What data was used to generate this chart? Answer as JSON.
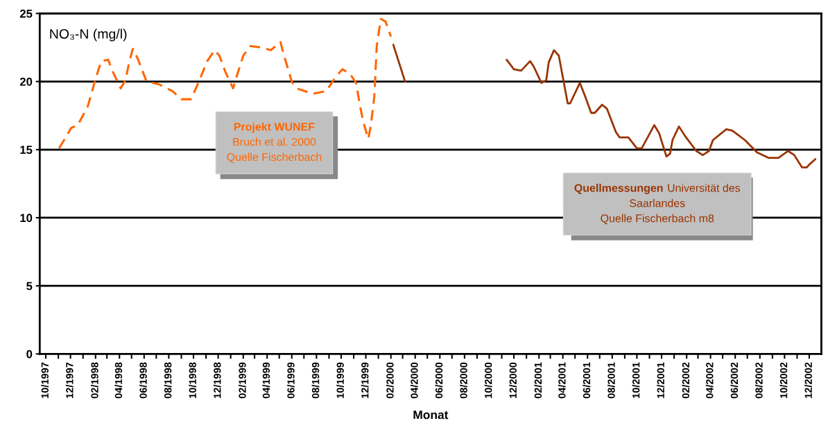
{
  "chart_data": {
    "type": "line",
    "xlabel": "Monat",
    "ylabel": "NO₃-N (mg/l)",
    "ylim": [
      0,
      25
    ],
    "yticks": [
      0,
      5,
      10,
      15,
      20,
      25
    ],
    "grid": "y",
    "legend": false,
    "xlim": [
      "1997-09-16",
      "2002-12-31"
    ],
    "xticks": [
      {
        "value": "1997-10-01",
        "label": "10/1997"
      },
      {
        "value": "1997-11-01",
        "label": null
      },
      {
        "value": "1997-12-01",
        "label": "12/1997"
      },
      {
        "value": "1998-01-01",
        "label": null
      },
      {
        "value": "1998-02-01",
        "label": "02/1998"
      },
      {
        "value": "1998-03-01",
        "label": null
      },
      {
        "value": "1998-04-01",
        "label": "04/1998"
      },
      {
        "value": "1998-05-01",
        "label": null
      },
      {
        "value": "1998-06-01",
        "label": "06/1998"
      },
      {
        "value": "1998-07-01",
        "label": null
      },
      {
        "value": "1998-08-01",
        "label": "08/1998"
      },
      {
        "value": "1998-09-01",
        "label": null
      },
      {
        "value": "1998-10-01",
        "label": "10/1998"
      },
      {
        "value": "1998-11-01",
        "label": null
      },
      {
        "value": "1998-12-01",
        "label": "12/1998"
      },
      {
        "value": "1999-01-01",
        "label": null
      },
      {
        "value": "1999-02-01",
        "label": "02/1999"
      },
      {
        "value": "1999-03-01",
        "label": null
      },
      {
        "value": "1999-04-01",
        "label": "04/1999"
      },
      {
        "value": "1999-05-01",
        "label": null
      },
      {
        "value": "1999-06-01",
        "label": "06/1999"
      },
      {
        "value": "1999-07-01",
        "label": null
      },
      {
        "value": "1999-08-01",
        "label": "08/1999"
      },
      {
        "value": "1999-09-01",
        "label": null
      },
      {
        "value": "1999-10-01",
        "label": "10/1999"
      },
      {
        "value": "1999-11-01",
        "label": null
      },
      {
        "value": "1999-12-01",
        "label": "12/1999"
      },
      {
        "value": "2000-01-01",
        "label": null
      },
      {
        "value": "2000-02-01",
        "label": "02/2000"
      },
      {
        "value": "2000-03-01",
        "label": null
      },
      {
        "value": "2000-04-01",
        "label": "04/2000"
      },
      {
        "value": "2000-05-01",
        "label": null
      },
      {
        "value": "2000-06-01",
        "label": "06/2000"
      },
      {
        "value": "2000-07-01",
        "label": null
      },
      {
        "value": "2000-08-01",
        "label": "08/2000"
      },
      {
        "value": "2000-09-01",
        "label": null
      },
      {
        "value": "2000-10-01",
        "label": "10/2000"
      },
      {
        "value": "2000-11-01",
        "label": null
      },
      {
        "value": "2000-12-01",
        "label": "12/2000"
      },
      {
        "value": "2001-01-01",
        "label": null
      },
      {
        "value": "2001-02-01",
        "label": "02/2001"
      },
      {
        "value": "2001-03-01",
        "label": null
      },
      {
        "value": "2001-04-01",
        "label": "04/2001"
      },
      {
        "value": "2001-05-01",
        "label": null
      },
      {
        "value": "2001-06-01",
        "label": "06/2001"
      },
      {
        "value": "2001-07-01",
        "label": null
      },
      {
        "value": "2001-08-01",
        "label": "08/2001"
      },
      {
        "value": "2001-09-01",
        "label": null
      },
      {
        "value": "2001-10-01",
        "label": "10/2001"
      },
      {
        "value": "2001-11-01",
        "label": null
      },
      {
        "value": "2001-12-01",
        "label": "12/2001"
      },
      {
        "value": "2002-01-01",
        "label": null
      },
      {
        "value": "2002-02-01",
        "label": "02/2002"
      },
      {
        "value": "2002-03-01",
        "label": null
      },
      {
        "value": "2002-04-01",
        "label": "04/2002"
      },
      {
        "value": "2002-05-01",
        "label": null
      },
      {
        "value": "2002-06-01",
        "label": "06/2002"
      },
      {
        "value": "2002-07-01",
        "label": null
      },
      {
        "value": "2002-08-01",
        "label": "08/2002"
      },
      {
        "value": "2002-09-01",
        "label": null
      },
      {
        "value": "2002-10-01",
        "label": "10/2002"
      },
      {
        "value": "2002-11-01",
        "label": null
      },
      {
        "value": "2002-12-01",
        "label": "12/2002"
      }
    ],
    "series": [
      {
        "name": "Projekt WUNEF\nBruch et al. 2000\nQuelle Fischerbach",
        "color": "#ff6600",
        "line_style": "dashed",
        "x": [
          "1997-11-03",
          "1997-12-03",
          "1997-12-19",
          "1998-01-13",
          "1998-02-01",
          "1998-02-15",
          "1998-03-04",
          "1998-03-16",
          "1998-04-04",
          "1998-04-16",
          "1998-04-25",
          "1998-05-04",
          "1998-05-16",
          "1998-06-07",
          "1998-07-07",
          "1998-08-10",
          "1998-09-01",
          "1998-09-25",
          "1998-10-13",
          "1998-11-04",
          "1998-11-22",
          "1998-12-04",
          "1998-12-19",
          "1999-01-07",
          "1999-01-16",
          "1999-02-01",
          "1999-02-19",
          "1999-03-19",
          "1999-04-10",
          "1999-05-04",
          "1999-05-13",
          "1999-06-01",
          "1999-06-13",
          "1999-07-22",
          "1999-08-25",
          "1999-09-19",
          "1999-10-04",
          "1999-10-22",
          "1999-11-07",
          "1999-11-16",
          "1999-11-25",
          "1999-12-07",
          "1999-12-13",
          "1999-12-22",
          "1999-12-28",
          "2000-01-07",
          "2000-01-19",
          "2000-02-01"
        ],
        "values": [
          15.1,
          16.6,
          16.8,
          18.2,
          20.2,
          21.5,
          21.6,
          20.7,
          19.5,
          20.1,
          21.4,
          22.4,
          21.7,
          20.0,
          19.8,
          19.3,
          18.7,
          18.7,
          19.9,
          21.5,
          22.3,
          21.9,
          20.7,
          19.5,
          20.4,
          21.9,
          22.6,
          22.5,
          22.3,
          22.9,
          21.9,
          20.0,
          19.5,
          19.1,
          19.3,
          20.4,
          20.9,
          20.6,
          19.9,
          18.3,
          17.0,
          15.8,
          16.7,
          18.9,
          22.6,
          24.6,
          24.4,
          23.3
        ]
      },
      {
        "name": "Quellmessungen Universität des\nSaarlandes\nQuelle Fischerbach m8",
        "color": "#993300",
        "line_style": "solid",
        "x": [
          "2000-02-07",
          "2000-03-07",
          "2000-06-01",
          "2000-11-13",
          "2000-12-01",
          "2000-12-19",
          "2001-01-10",
          "2001-01-19",
          "2001-02-07",
          "2001-02-19",
          "2001-02-25",
          "2001-03-10",
          "2001-03-22",
          "2001-04-13",
          "2001-04-19",
          "2001-05-13",
          "2001-05-25",
          "2001-06-10",
          "2001-06-19",
          "2001-07-07",
          "2001-07-19",
          "2001-08-10",
          "2001-08-19",
          "2001-09-10",
          "2001-10-01",
          "2001-10-13",
          "2001-11-13",
          "2001-11-25",
          "2001-12-13",
          "2001-12-22",
          "2001-12-28",
          "2002-01-13",
          "2002-01-28",
          "2002-02-25",
          "2002-03-13",
          "2002-03-28",
          "2002-04-07",
          "2002-05-10",
          "2002-05-25",
          "2002-06-25",
          "2002-07-25",
          "2002-08-22",
          "2002-09-16",
          "2002-10-10",
          "2002-10-25",
          "2002-11-13",
          "2002-11-25",
          "2002-12-01",
          "2002-12-16"
        ],
        "values": [
          22.7,
          20.0,
          null,
          21.6,
          20.9,
          20.8,
          21.5,
          21.1,
          19.9,
          20.1,
          21.4,
          22.3,
          21.9,
          18.4,
          18.4,
          19.9,
          19.0,
          17.7,
          17.7,
          18.3,
          18.0,
          16.3,
          15.9,
          15.9,
          15.1,
          15.1,
          16.8,
          16.2,
          14.5,
          14.7,
          15.7,
          16.7,
          16.0,
          14.9,
          14.6,
          14.9,
          15.7,
          16.5,
          16.4,
          15.7,
          14.8,
          14.4,
          14.4,
          14.9,
          14.6,
          13.7,
          13.7,
          13.9,
          14.3
        ]
      }
    ]
  }
}
